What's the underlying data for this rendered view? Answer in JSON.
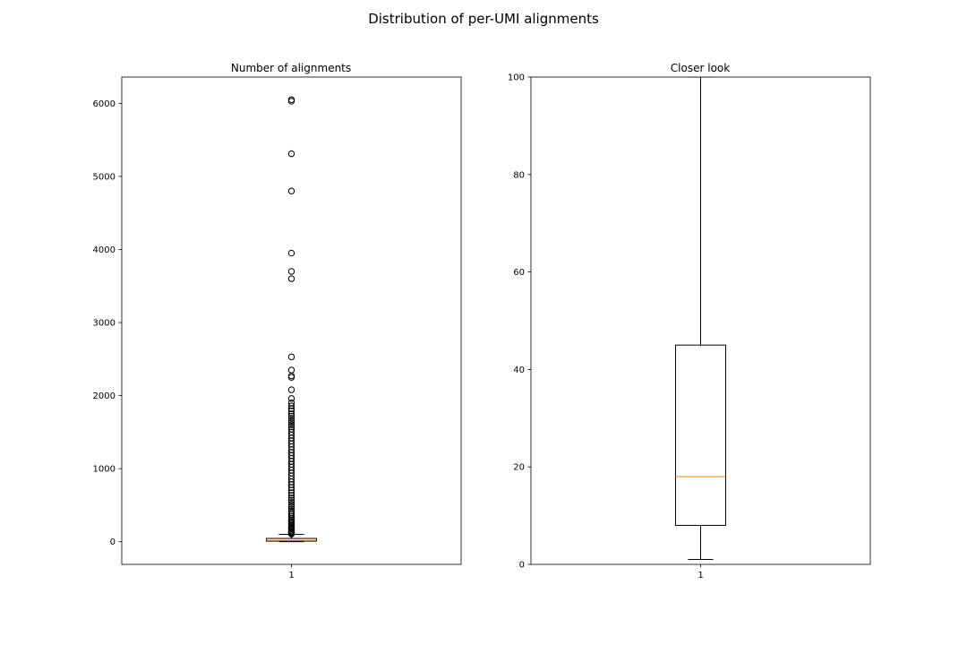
{
  "figure": {
    "title": "Distribution of per-UMI alignments"
  },
  "colors": {
    "box": "#000000",
    "median": "#ff7f0e",
    "flier_edge": "#000000",
    "background": "#ffffff"
  },
  "chart_data": [
    {
      "type": "box",
      "title": "Number of alignments",
      "xlabel": "",
      "ylabel": "",
      "categories": [
        "1"
      ],
      "ylim": [
        -310,
        6360
      ],
      "yticks": [
        0,
        1000,
        2000,
        3000,
        4000,
        5000,
        6000
      ],
      "ytick_labels": [
        "0",
        "1000",
        "2000",
        "3000",
        "4000",
        "5000",
        "6000"
      ],
      "grid": false,
      "box": {
        "whisker_low": 1,
        "q1": 8,
        "median": 18,
        "q3": 45,
        "whisker_high": 100
      },
      "fliers": [
        105,
        115,
        125,
        135,
        145,
        160,
        175,
        190,
        205,
        220,
        240,
        260,
        280,
        300,
        320,
        345,
        370,
        395,
        420,
        450,
        480,
        510,
        540,
        570,
        600,
        635,
        670,
        705,
        740,
        780,
        820,
        860,
        900,
        940,
        980,
        1020,
        1060,
        1100,
        1140,
        1180,
        1220,
        1260,
        1300,
        1340,
        1380,
        1420,
        1460,
        1500,
        1540,
        1570,
        1600,
        1630,
        1660,
        1690,
        1720,
        1750,
        1790,
        1820,
        1860,
        1900,
        1960,
        2080,
        2250,
        2270,
        2350,
        2530,
        3600,
        3700,
        3950,
        4800,
        5310,
        6030,
        6050
      ]
    },
    {
      "type": "box",
      "title": "Closer look",
      "xlabel": "",
      "ylabel": "",
      "categories": [
        "1"
      ],
      "ylim": [
        0,
        100
      ],
      "yticks": [
        0,
        20,
        40,
        60,
        80,
        100
      ],
      "ytick_labels": [
        "0",
        "20",
        "40",
        "60",
        "80",
        "100"
      ],
      "grid": false,
      "box": {
        "whisker_low": 1,
        "q1": 8,
        "median": 18,
        "q3": 45,
        "whisker_high": 100
      },
      "fliers": []
    }
  ]
}
